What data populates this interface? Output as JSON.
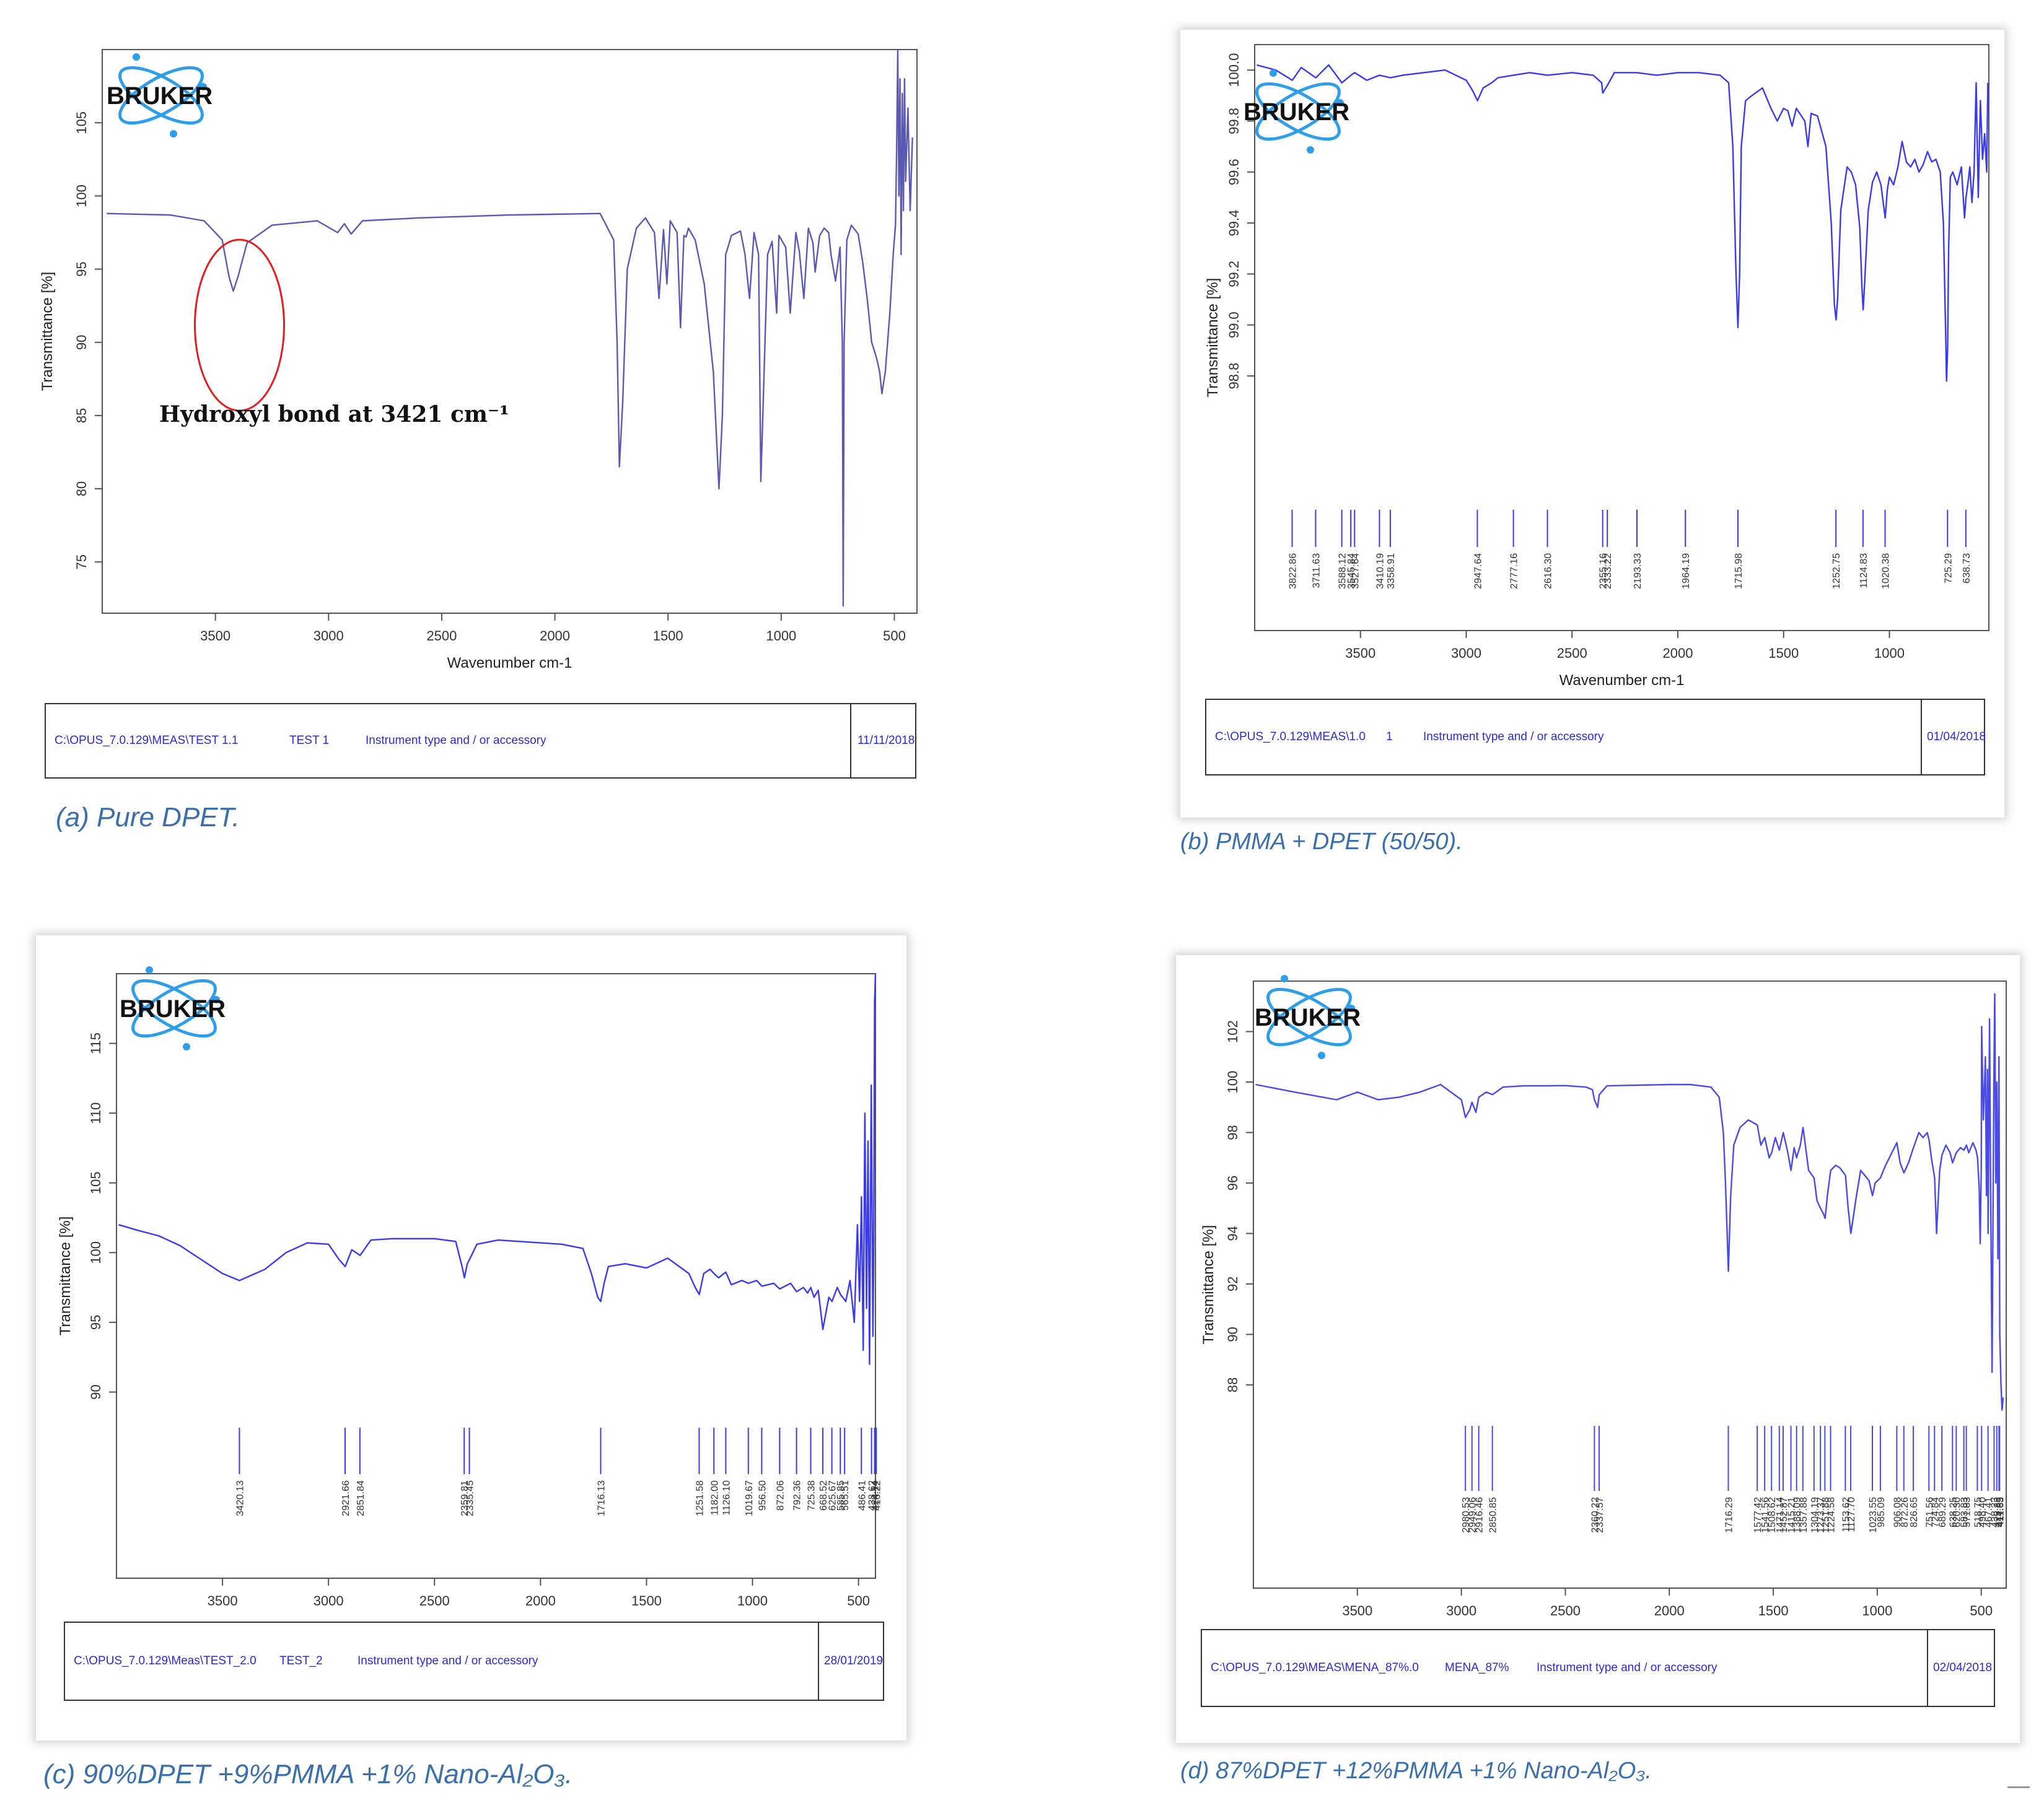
{
  "brand": {
    "logo_text": "BRUKER",
    "accent_color": "#2f9ee8"
  },
  "chart_data": [
    {
      "id": "a",
      "type": "line",
      "xlabel": "Wavenumber cm-1",
      "ylabel": "Transmittance [%]",
      "xlim": [
        4000,
        400
      ],
      "ylim": [
        71.5,
        110
      ],
      "x_ticks": [
        3500,
        3000,
        2500,
        2000,
        1500,
        1000,
        500
      ],
      "y_ticks": [
        75,
        80,
        85,
        90,
        95,
        100,
        105
      ],
      "line_color": "#5a5ab4",
      "series": [
        {
          "x": [
            3980,
            3700,
            3550,
            3470,
            3440,
            3421,
            3400,
            3360,
            3250,
            3050,
            2960,
            2930,
            2900,
            2850,
            2600,
            2200,
            1800,
            1740,
            1725,
            1715,
            1700,
            1680,
            1640,
            1600,
            1560,
            1540,
            1520,
            1505,
            1490,
            1460,
            1445,
            1430,
            1420,
            1410,
            1380,
            1340,
            1300,
            1275,
            1260,
            1245,
            1220,
            1180,
            1160,
            1140,
            1120,
            1100,
            1090,
            1060,
            1040,
            1020,
            1010,
            980,
            960,
            935,
            920,
            900,
            880,
            860,
            850,
            830,
            810,
            790,
            780,
            760,
            740,
            730,
            726,
            722,
            710,
            690,
            660,
            640,
            620,
            600,
            580,
            565,
            555,
            540,
            520,
            505,
            495,
            490,
            485,
            480,
            475,
            470,
            465,
            460,
            455,
            450,
            440,
            430,
            420
          ],
          "y": [
            98.8,
            98.7,
            98.3,
            97.0,
            94.5,
            93.5,
            94.5,
            96.8,
            98.0,
            98.3,
            97.5,
            98.1,
            97.4,
            98.3,
            98.5,
            98.7,
            98.8,
            97,
            90,
            81.5,
            86,
            95,
            97.8,
            98.5,
            97.5,
            93,
            97.7,
            94,
            98.3,
            97.5,
            91,
            97.3,
            97.2,
            97.8,
            97,
            94,
            88,
            80,
            85,
            96,
            97.3,
            97.6,
            96,
            93,
            97.5,
            96,
            80.5,
            96,
            96.9,
            92,
            97.3,
            96.5,
            92,
            97.5,
            96.2,
            93,
            97.8,
            96.8,
            94.8,
            97.3,
            97.8,
            97.5,
            96,
            94.2,
            96.5,
            90,
            72,
            90,
            97,
            98,
            97.4,
            95.5,
            93,
            90,
            89,
            88,
            86.5,
            88,
            92,
            96,
            98,
            103,
            110,
            100,
            108,
            96,
            107,
            99,
            108,
            101,
            106,
            99,
            104
          ]
        }
      ],
      "annotation": "Hydroxyl bond at 3421 cm⁻¹",
      "footer": {
        "path": "C:\\OPUS_7.0.129\\MEAS\\TEST 1.1",
        "sample": "TEST 1",
        "instrument": "Instrument type and / or accessory",
        "date": "11/11/2018"
      },
      "caption": "(a) Pure DPET."
    },
    {
      "id": "b",
      "type": "line",
      "xlabel": "Wavenumber cm-1",
      "ylabel": "Transmittance [%]",
      "xlim": [
        4000,
        530
      ],
      "ylim": [
        98.36,
        100.1
      ],
      "x_ticks": [
        3500,
        3000,
        2500,
        2000,
        1500,
        1000
      ],
      "y_ticks": [
        98.8,
        99.0,
        99.2,
        99.4,
        99.6,
        99.8,
        100.0
      ],
      "y_tick_labels": [
        "98.8",
        "99.0",
        "99.2",
        "99.4",
        "99.6",
        "99.8",
        "100.0"
      ],
      "line_color": "#3a3aef",
      "peak_labels": [
        "3822.86",
        "3711.63",
        "3588.12",
        "3545.84",
        "3527.64",
        "3410.19",
        "3358.91",
        "2947.64",
        "2777.16",
        "2616.30",
        "2355.16",
        "2333.22",
        "2193.33",
        "1964.19",
        "1715.98",
        "1252.75",
        "1124.83",
        "1020.38",
        "725.29",
        "638.73"
      ],
      "series": [
        {
          "x": [
            3990,
            3900,
            3822,
            3780,
            3711,
            3650,
            3588,
            3545,
            3527,
            3470,
            3410,
            3358,
            3300,
            3200,
            3100,
            3000,
            2970,
            2947,
            2920,
            2880,
            2850,
            2777,
            2700,
            2616,
            2500,
            2400,
            2360,
            2355,
            2333,
            2300,
            2193,
            2100,
            2000,
            1964,
            1900,
            1800,
            1760,
            1740,
            1725,
            1716,
            1708,
            1700,
            1680,
            1650,
            1600,
            1560,
            1530,
            1500,
            1480,
            1460,
            1440,
            1400,
            1385,
            1370,
            1340,
            1300,
            1275,
            1260,
            1252,
            1245,
            1230,
            1200,
            1180,
            1160,
            1140,
            1130,
            1124,
            1118,
            1100,
            1080,
            1060,
            1040,
            1020,
            1010,
            1000,
            980,
            960,
            940,
            920,
            900,
            880,
            860,
            840,
            820,
            800,
            780,
            760,
            745,
            735,
            730,
            725,
            720,
            712,
            700,
            680,
            660,
            645,
            638,
            630,
            620,
            610,
            600,
            590,
            580,
            570,
            560,
            550,
            540,
            535
          ],
          "y": [
            100.02,
            100.0,
            99.96,
            100.01,
            99.97,
            100.02,
            99.95,
            99.98,
            99.99,
            99.96,
            99.98,
            99.97,
            99.98,
            99.99,
            100.0,
            99.96,
            99.92,
            99.88,
            99.93,
            99.95,
            99.97,
            99.98,
            99.99,
            99.98,
            99.99,
            99.98,
            99.95,
            99.91,
            99.94,
            99.99,
            99.99,
            99.98,
            99.99,
            99.99,
            99.99,
            99.98,
            99.95,
            99.7,
            99.2,
            98.99,
            99.2,
            99.7,
            99.88,
            99.9,
            99.93,
            99.85,
            99.8,
            99.85,
            99.84,
            99.78,
            99.85,
            99.8,
            99.7,
            99.83,
            99.82,
            99.7,
            99.4,
            99.08,
            99.02,
            99.1,
            99.45,
            99.62,
            99.6,
            99.55,
            99.38,
            99.15,
            99.06,
            99.15,
            99.45,
            99.56,
            99.6,
            99.55,
            99.42,
            99.53,
            99.58,
            99.55,
            99.62,
            99.72,
            99.64,
            99.62,
            99.65,
            99.6,
            99.63,
            99.68,
            99.64,
            99.65,
            99.6,
            99.4,
            99.0,
            98.78,
            98.9,
            99.3,
            99.58,
            99.6,
            99.55,
            99.62,
            99.42,
            99.5,
            99.55,
            99.62,
            99.48,
            99.6,
            99.95,
            99.5,
            99.88,
            99.65,
            99.75,
            99.6,
            99.95
          ]
        }
      ],
      "footer": {
        "path": "C:\\OPUS_7.0.129\\MEAS\\1.0",
        "sample": "1",
        "instrument": "Instrument type and / or accessory",
        "date": "01/04/2018"
      },
      "caption": "(b) PMMA + DPET (50/50)."
    },
    {
      "id": "c",
      "type": "line",
      "xlabel": "Wavenumber cm-1",
      "ylabel": "Transmittance [%]",
      "xlim": [
        4000,
        420
      ],
      "ylim": [
        89,
        120
      ],
      "x_ticks": [
        3500,
        3000,
        2500,
        2000,
        1500,
        1000,
        500
      ],
      "y_ticks": [
        90,
        95,
        100,
        105,
        110,
        115
      ],
      "line_color": "#3a3aef",
      "peak_labels": [
        "3420.13",
        "2921.66",
        "2851.84",
        "2359.81",
        "2335.45",
        "1716.13",
        "1251.58",
        "1182.00",
        "1126.10",
        "1019.67",
        "956.50",
        "872.06",
        "792.36",
        "725.38",
        "668.52",
        "625.67",
        "585.85",
        "565.51",
        "486.41",
        "438.62",
        "424.14",
        "416.22"
      ],
      "series": [
        {
          "x": [
            3990,
            3900,
            3800,
            3700,
            3600,
            3500,
            3420,
            3300,
            3200,
            3100,
            3000,
            2950,
            2921,
            2890,
            2851,
            2800,
            2700,
            2500,
            2400,
            2370,
            2359,
            2345,
            2335,
            2300,
            2200,
            2000,
            1900,
            1800,
            1760,
            1730,
            1716,
            1700,
            1680,
            1600,
            1500,
            1400,
            1300,
            1270,
            1251,
            1230,
            1200,
            1182,
            1160,
            1126,
            1100,
            1050,
            1019,
            980,
            956,
            900,
            872,
            820,
            792,
            760,
            740,
            725,
            710,
            690,
            668,
            640,
            625,
            600,
            585,
            560,
            540,
            520,
            505,
            495,
            486,
            478,
            470,
            462,
            455,
            448,
            440,
            432,
            428,
            424,
            420
          ],
          "y": [
            102,
            101.6,
            101.2,
            100.5,
            99.5,
            98.5,
            98.0,
            98.8,
            100,
            100.7,
            100.6,
            99.5,
            99.0,
            100.2,
            99.8,
            100.9,
            101.0,
            101.0,
            100.8,
            99.0,
            98.2,
            99.2,
            99.5,
            100.6,
            100.9,
            100.7,
            100.6,
            100.3,
            98.5,
            96.8,
            96.5,
            97.8,
            99,
            99.2,
            98.9,
            99.6,
            98.5,
            97.5,
            97.0,
            98.5,
            98.8,
            98.5,
            98.2,
            98.6,
            97.7,
            98.0,
            97.8,
            98.0,
            97.6,
            97.8,
            97.4,
            97.8,
            97.2,
            97.5,
            97.1,
            97.5,
            96.8,
            97.3,
            94.5,
            96.8,
            96.5,
            97.5,
            97,
            96.5,
            98,
            95,
            102,
            96.5,
            104,
            93,
            110,
            96,
            108,
            92,
            112,
            94,
            101,
            118,
            120
          ]
        }
      ],
      "footer": {
        "path": "C:\\OPUS_7.0.129\\Meas\\TEST_2.0",
        "sample": "TEST_2",
        "instrument": "Instrument type and / or accessory",
        "date": "28/01/2019"
      },
      "caption": "(c)  90%DPET +9%PMMA +1% Nano-Al₂O₃."
    },
    {
      "id": "d",
      "type": "line",
      "xlabel": "Wavenumber cm-1",
      "ylabel": "Transmittance [%]",
      "xlim": [
        4000,
        380
      ],
      "ylim": [
        86.5,
        104
      ],
      "x_ticks": [
        3500,
        3000,
        2500,
        2000,
        1500,
        1000,
        500
      ],
      "y_ticks": [
        88,
        90,
        92,
        94,
        96,
        98,
        100,
        102
      ],
      "line_color": "#4a4ae6",
      "peak_labels": [
        "2980.53",
        "2949.06",
        "2916.46",
        "2850.85",
        "2360.22",
        "2337.57",
        "1716.29",
        "1577.42",
        "1541.56",
        "1508.62",
        "1471.14",
        "1452.87",
        "1415.21",
        "1388.09",
        "1357.88",
        "1304.19",
        "1273.37",
        "1251.88",
        "1224.58",
        "1153.62",
        "1127.70",
        "1023.55",
        "985.09",
        "906.08",
        "872.26",
        "826.65",
        "751.56",
        "724.84",
        "689.29",
        "638.25",
        "620.30",
        "583.83",
        "571.83",
        "518.75",
        "498.40",
        "467.41",
        "438.23",
        "425.33",
        "414.85",
        "411.63"
      ],
      "series": [
        {
          "x": [
            3990,
            3800,
            3600,
            3500,
            3400,
            3300,
            3200,
            3100,
            3000,
            2980,
            2960,
            2949,
            2930,
            2916,
            2880,
            2850,
            2800,
            2700,
            2600,
            2500,
            2400,
            2370,
            2360,
            2345,
            2337,
            2300,
            2200,
            2000,
            1900,
            1800,
            1760,
            1740,
            1730,
            1716,
            1705,
            1690,
            1660,
            1620,
            1577,
            1560,
            1541,
            1520,
            1508,
            1490,
            1471,
            1452,
            1430,
            1415,
            1400,
            1388,
            1370,
            1357,
            1330,
            1304,
            1290,
            1273,
            1260,
            1251,
            1240,
            1224,
            1200,
            1180,
            1153,
            1140,
            1127,
            1100,
            1080,
            1060,
            1040,
            1023,
            1010,
            985,
            960,
            930,
            906,
            890,
            872,
            850,
            826,
            800,
            780,
            760,
            751,
            740,
            724,
            715,
            700,
            689,
            670,
            650,
            638,
            620,
            600,
            583,
            571,
            560,
            540,
            525,
            518,
            510,
            505,
            500,
            498,
            490,
            480,
            475,
            470,
            467,
            460,
            455,
            448,
            440,
            435,
            430,
            425,
            420,
            415,
            411,
            405,
            400,
            395
          ],
          "y": [
            99.9,
            99.6,
            99.3,
            99.6,
            99.3,
            99.4,
            99.6,
            99.9,
            99.3,
            98.6,
            98.9,
            99.2,
            98.8,
            99.4,
            99.6,
            99.5,
            99.8,
            99.85,
            99.85,
            99.86,
            99.8,
            99.7,
            99.3,
            99.0,
            99.5,
            99.85,
            99.87,
            99.9,
            99.9,
            99.8,
            99.4,
            98.0,
            96.0,
            92.5,
            95.5,
            97.5,
            98.2,
            98.5,
            98.3,
            97.5,
            97.8,
            97.0,
            97.2,
            97.8,
            97.3,
            98.0,
            97.2,
            96.5,
            97.4,
            97.0,
            97.5,
            98.2,
            96.5,
            96.2,
            95.3,
            95.0,
            94.8,
            94.6,
            95.5,
            96.5,
            96.7,
            96.6,
            96.3,
            95.0,
            94.0,
            95.5,
            96.5,
            96.3,
            96.1,
            95.5,
            96.0,
            96.2,
            96.7,
            97.2,
            97.6,
            96.8,
            96.4,
            96.8,
            97.4,
            98.0,
            97.8,
            98.0,
            97.7,
            97.0,
            96.2,
            94.0,
            96.5,
            97.1,
            97.5,
            97.2,
            96.8,
            97.2,
            97.4,
            97.3,
            97.5,
            97.2,
            97.6,
            97.3,
            97.0,
            95.8,
            93.6,
            96.5,
            102.2,
            98.5,
            101.0,
            95.5,
            100.5,
            94.0,
            102.5,
            96.0,
            88.5,
            99.5,
            103.5,
            96.0,
            100.0,
            93.0,
            101.0,
            90.0,
            88.0,
            87.0,
            87.5
          ]
        }
      ],
      "footer": {
        "path": "C:\\OPUS_7.0.129\\MEAS\\MENA_87%.0",
        "sample": "MENA_87%",
        "instrument": "Instrument type and / or accessory",
        "date": "02/04/2018"
      },
      "caption": "(d) 87%DPET +12%PMMA +1% Nano-Al₂O₃."
    }
  ]
}
